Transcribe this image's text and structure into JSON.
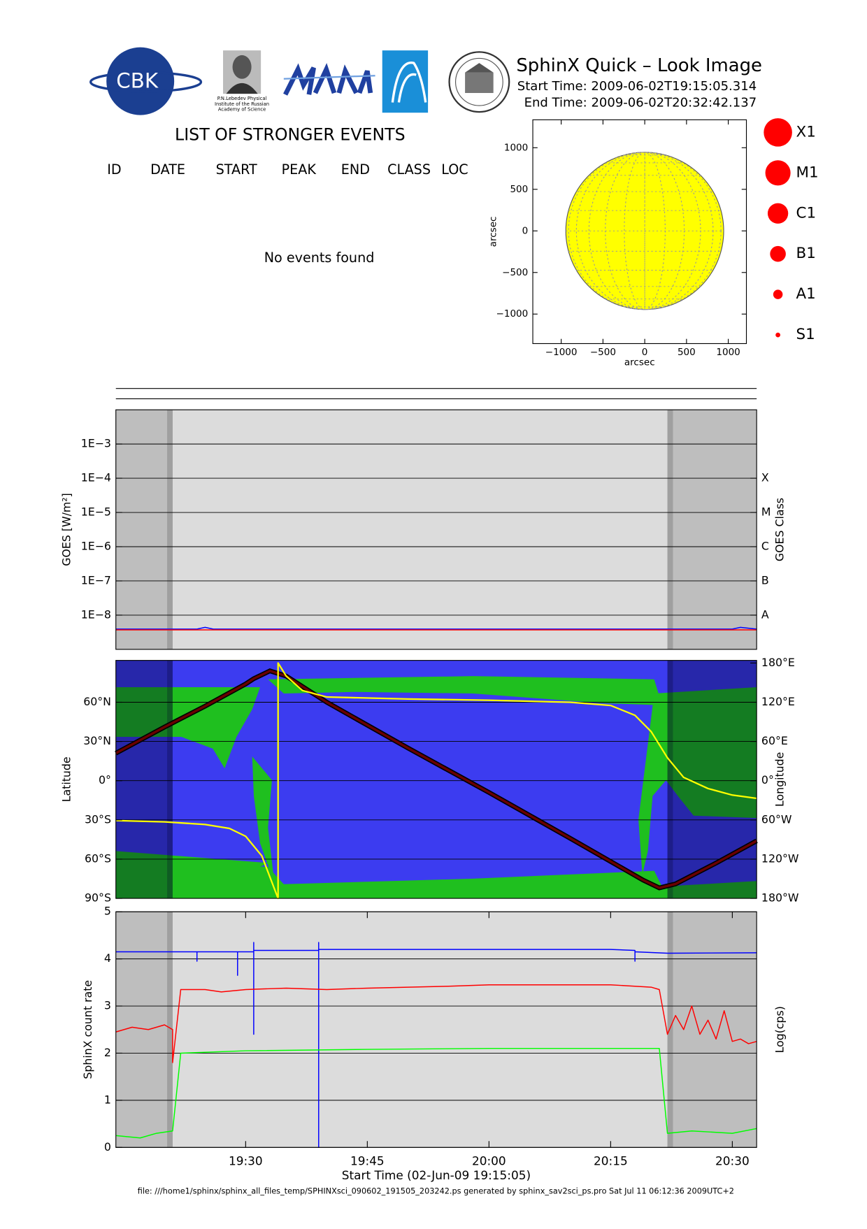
{
  "header": {
    "logo_text": "CBK",
    "institute_lines": [
      "P.N.Lebedev Physical",
      "Institute of the Russian",
      "Academy of Science"
    ],
    "title": "SphinX Quick – Look Image",
    "start_time": "Start Time: 2009-06-02T19:15:05.314",
    "end_time": "End Time: 2009-06-02T20:32:42.137"
  },
  "events": {
    "title": "LIST OF STRONGER EVENTS",
    "columns": [
      "ID",
      "DATE",
      "START",
      "PEAK",
      "END",
      "CLASS",
      "LOC"
    ],
    "message": "No events found"
  },
  "footer": "file: ///home1/sphinx/sphinx_all_files_temp/SPHINXsci_090602_191505_203242.ps generated by sphinx_sav2sci_ps.pro Sat Jul 11 06:12:36 2009UTC+2",
  "chart_data": [
    {
      "type": "disk",
      "xlabel": "arcsec",
      "ylabel": "arcsec",
      "xlim": [
        -1340,
        1217
      ],
      "ylim": [
        -1355,
        1336
      ],
      "xticks": [
        {
          "value": -1000,
          "label": "−1000"
        },
        {
          "value": -500,
          "label": "−500"
        },
        0,
        500,
        1000
      ],
      "yticks": [
        {
          "value": -1000,
          "label": "−1000"
        },
        {
          "value": -500,
          "label": "−500"
        },
        0,
        500,
        1000
      ],
      "radius": 945,
      "color": "#ffff00",
      "classes": [
        "X1",
        "M1",
        "C1",
        "B1",
        "A1",
        "S1"
      ],
      "class_sizes": [
        18,
        16,
        13,
        10,
        6,
        3
      ],
      "class_color": "#ff0000"
    },
    {
      "type": "line",
      "ylabel": "GOES [W/m²]",
      "y2label": "GOES Class",
      "ylog": true,
      "grid": true,
      "xlim": [
        "19:14",
        "20:33"
      ],
      "ylim": [
        1e-09,
        0.01
      ],
      "yticks": [
        {
          "value": 0.001,
          "label": "1E−3"
        },
        {
          "value": 0.0001,
          "label": "1E−4"
        },
        {
          "value": 1e-05,
          "label": "1E−5"
        },
        {
          "value": 1e-06,
          "label": "1E−6"
        },
        {
          "value": 1e-07,
          "label": "1E−7"
        },
        {
          "value": 1e-08,
          "label": "1E−8"
        }
      ],
      "y2lim": [
        1e-09,
        0.01
      ],
      "y2ticks": [
        {
          "value": 0.0001,
          "label": "X"
        },
        {
          "value": 1e-05,
          "label": "M"
        },
        {
          "value": 1e-06,
          "label": "C"
        },
        {
          "value": 1e-07,
          "label": "B"
        },
        {
          "value": 1e-08,
          "label": "A"
        }
      ],
      "shaded": [
        [
          "19:14",
          "19:21"
        ],
        [
          "20:22",
          "20:33"
        ]
      ],
      "series": [
        {
          "color": "#0000ff",
          "x": [
            "19:14",
            "19:24",
            "19:25",
            "19:26",
            "19:45",
            "20:00",
            "20:30",
            "20:31",
            "20:33"
          ],
          "values": [
            3.9e-09,
            3.9e-09,
            4.4e-09,
            3.9e-09,
            3.9e-09,
            3.9e-09,
            3.9e-09,
            4.4e-09,
            3.9e-09
          ]
        },
        {
          "color": "#ff0000",
          "x": [
            "19:14",
            "20:33"
          ],
          "values": [
            3.7e-09,
            3.7e-09
          ]
        }
      ]
    },
    {
      "type": "track",
      "ylabel": "Latitude",
      "y2label": "Longitude",
      "grid": true,
      "xlim": [
        "19:14",
        "20:33"
      ],
      "ylim": [
        -90,
        92
      ],
      "y2lim": [
        -180,
        184
      ],
      "yticks": [
        {
          "value": -90,
          "label": "90°S"
        },
        {
          "value": -60,
          "label": "60°S"
        },
        {
          "value": -30,
          "label": "30°S"
        },
        {
          "value": 0,
          "label": "0°"
        },
        {
          "value": 30,
          "label": "30°N"
        },
        {
          "value": 60,
          "label": "60°N"
        }
      ],
      "y2ticks": [
        {
          "value": -180,
          "label": "180°W"
        },
        {
          "value": -120,
          "label": "120°W"
        },
        {
          "value": -60,
          "label": "60°W"
        },
        {
          "value": 0,
          "label": "0°"
        },
        {
          "value": 60,
          "label": "60°E"
        },
        {
          "value": 120,
          "label": "120°E"
        },
        {
          "value": 180,
          "label": "180°E"
        }
      ],
      "shaded": [
        [
          "19:14",
          "19:21"
        ],
        [
          "20:22",
          "20:33"
        ]
      ],
      "series": [
        {
          "color": "#6b0000",
          "x": [
            "19:14",
            "19:20",
            "19:25",
            "19:30",
            "19:31",
            "19:33",
            "19:35",
            "19:40",
            "19:50",
            "20:00",
            "20:10",
            "20:19",
            "20:21",
            "20:23",
            "20:28",
            "20:33"
          ],
          "values": [
            21,
            41,
            57,
            74,
            78,
            84,
            80,
            60,
            25,
            -9,
            -44,
            -76,
            -82,
            -79,
            -63,
            -46
          ]
        },
        {
          "color": "#ffff00",
          "axis": "y2",
          "x": [
            "19:14",
            "19:20",
            "19:25",
            "19:28",
            "19:30",
            "19:32",
            "19:34",
            "19:34",
            "19:35",
            "19:37",
            "19:40",
            "19:50",
            "20:00",
            "20:10",
            "20:15",
            "20:18",
            "20:20",
            "20:22",
            "20:24",
            "20:27",
            "20:30",
            "20:33"
          ],
          "values": [
            -61,
            -63,
            -67,
            -73,
            -85,
            -115,
            -180,
            180,
            160,
            138,
            128,
            125,
            123,
            120,
            115,
            100,
            75,
            35,
            5,
            -12,
            -22,
            -27
          ]
        }
      ]
    },
    {
      "type": "line",
      "ylabel": "SphinX count rate",
      "y2label": "Log(cps)",
      "xlabel": "Start Time (02-Jun-09 19:15:05)",
      "grid": true,
      "xlim": [
        "19:14",
        "20:33"
      ],
      "ylim": [
        0,
        5
      ],
      "yticks": [
        0,
        1,
        2,
        3,
        4,
        5
      ],
      "xticks": [
        "19:30",
        "19:45",
        "20:00",
        "20:15",
        "20:30"
      ],
      "shaded": [
        [
          "19:14",
          "19:21"
        ],
        [
          "20:22",
          "20:33"
        ]
      ],
      "series": [
        {
          "color": "#0000ff",
          "x": [
            "19:14",
            "19:20",
            "19:24",
            "19:24",
            "19:24",
            "19:29",
            "19:29",
            "19:29",
            "19:31",
            "19:31",
            "19:31",
            "19:31",
            "19:39",
            "19:39",
            "19:39",
            "19:39",
            "19:45",
            "20:00",
            "20:15",
            "20:18",
            "20:18",
            "20:18",
            "20:22",
            "20:33"
          ],
          "values": [
            4.15,
            4.15,
            4.15,
            3.95,
            4.15,
            4.15,
            3.65,
            4.15,
            4.15,
            4.35,
            2.4,
            4.18,
            4.18,
            4.35,
            0,
            4.2,
            4.2,
            4.2,
            4.2,
            4.18,
            3.95,
            4.15,
            4.12,
            4.13
          ]
        },
        {
          "color": "#ff0000",
          "x": [
            "19:14",
            "19:16",
            "19:18",
            "19:20",
            "19:21",
            "19:21",
            "19:22",
            "19:25",
            "19:27",
            "19:30",
            "19:35",
            "19:40",
            "19:45",
            "19:50",
            "19:55",
            "20:00",
            "20:05",
            "20:10",
            "20:15",
            "20:20",
            "20:21",
            "20:22",
            "20:23",
            "20:24",
            "20:25",
            "20:26",
            "20:27",
            "20:28",
            "20:29",
            "20:30",
            "20:31",
            "20:32",
            "20:33"
          ],
          "values": [
            2.45,
            2.55,
            2.5,
            2.6,
            2.5,
            1.8,
            3.35,
            3.35,
            3.3,
            3.35,
            3.38,
            3.35,
            3.38,
            3.4,
            3.42,
            3.45,
            3.45,
            3.45,
            3.45,
            3.4,
            3.35,
            2.4,
            2.8,
            2.5,
            3.0,
            2.4,
            2.7,
            2.3,
            2.9,
            2.25,
            2.3,
            2.2,
            2.25
          ]
        },
        {
          "color": "#00ff00",
          "x": [
            "19:14",
            "19:17",
            "19:19",
            "19:21",
            "19:22",
            "19:30",
            "19:45",
            "20:00",
            "20:15",
            "20:21",
            "20:22",
            "20:25",
            "20:30",
            "20:33"
          ],
          "values": [
            0.25,
            0.2,
            0.3,
            0.35,
            2.0,
            2.05,
            2.08,
            2.1,
            2.1,
            2.1,
            0.3,
            0.35,
            0.3,
            0.4
          ]
        }
      ]
    }
  ]
}
